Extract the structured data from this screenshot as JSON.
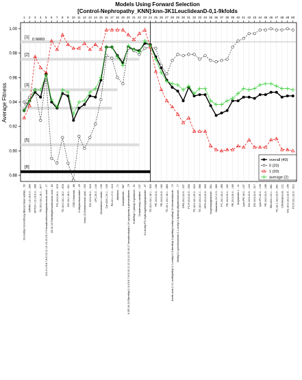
{
  "chart_data": {
    "type": "line",
    "title": "Models Using Forward Selection",
    "subtitle": "[Control-Nephropathy_KNN]:knn-3K1LeuclideanD-0,1-9kfolds",
    "ylabel": "Average Fitness",
    "xlabel": "",
    "ylim": [
      0.875,
      1.005
    ],
    "yticks": [
      "0.88",
      "0.90",
      "0.92",
      "0.94",
      "0.96",
      "0.98",
      "1.00"
    ],
    "y_tick_values": [
      0.88,
      0.9,
      0.92,
      0.94,
      0.96,
      0.98,
      1.0
    ],
    "top_ticks": [
      "2",
      "4",
      "6",
      "8",
      "10",
      "12",
      "14",
      "16",
      "18",
      "20",
      "22",
      "24",
      "26",
      "28",
      "30",
      "32",
      "34",
      "36",
      "38",
      "40",
      "42",
      "44",
      "46",
      "48",
      "50"
    ],
    "top_ticks_alt": [
      "1",
      "3",
      "5",
      "7",
      "9",
      "11",
      "13",
      "15",
      "17",
      "19",
      "21",
      "23",
      "25",
      "27",
      "29",
      "31",
      "33",
      "35",
      "37",
      "39",
      "41",
      "43",
      "45",
      "47",
      "49"
    ],
    "reference": {
      "label": "0.9893",
      "y": 0.9893
    },
    "level_labels": [
      {
        "label": "[1]",
        "y": 0.9893,
        "x_end": 24
      },
      {
        "label": "[2]",
        "y": 0.975,
        "x_end": 22
      },
      {
        "label": "[3]",
        "y": 0.95,
        "x_end": 18
      },
      {
        "label": "[4]",
        "y": 0.935,
        "x_end": 17
      },
      {
        "label": "[5]",
        "y": 0.905,
        "x_end": 22
      },
      {
        "label": "[6]",
        "y": 0.883,
        "x_end": 24
      }
    ],
    "cutoff_x": 24,
    "x": [
      1,
      2,
      3,
      4,
      5,
      6,
      7,
      8,
      9,
      10,
      11,
      12,
      13,
      14,
      15,
      16,
      17,
      18,
      19,
      20,
      21,
      22,
      23,
      24,
      25,
      26,
      27,
      28,
      29,
      30,
      31,
      32,
      33,
      34,
      35,
      36,
      37,
      38,
      39,
      40,
      41,
      42,
      43,
      44,
      45,
      46,
      47,
      48,
      49,
      50
    ],
    "series": [
      {
        "name": "overall (40)",
        "color": "#000000",
        "marker": "dot",
        "values": [
          0.933,
          0.941,
          0.948,
          0.944,
          0.963,
          0.94,
          0.935,
          0.947,
          0.945,
          0.925,
          0.935,
          0.938,
          0.945,
          0.944,
          0.958,
          0.985,
          0.985,
          0.978,
          0.972,
          0.985,
          0.983,
          0.982,
          0.988,
          0.987,
          0.977,
          0.968,
          0.958,
          0.952,
          0.949,
          0.941,
          0.952,
          0.945,
          0.946,
          0.946,
          0.937,
          0.929,
          0.931,
          0.933,
          0.941,
          0.941,
          0.944,
          0.944,
          0.943,
          0.946,
          0.946,
          0.948,
          0.948,
          0.944,
          0.945,
          0.945
        ]
      },
      {
        "name": "0 (20)",
        "color": "#333333",
        "marker": "circle",
        "values": [
          0.94,
          0.944,
          0.95,
          0.925,
          0.96,
          0.894,
          0.89,
          0.911,
          0.89,
          0.876,
          0.912,
          0.902,
          0.911,
          0.922,
          0.942,
          0.978,
          0.976,
          0.96,
          0.955,
          0.984,
          0.982,
          0.979,
          0.984,
          0.985,
          0.984,
          0.97,
          0.963,
          0.974,
          0.979,
          0.978,
          0.979,
          0.979,
          0.975,
          0.978,
          0.974,
          0.973,
          0.974,
          0.975,
          0.985,
          0.99,
          0.992,
          0.996,
          0.996,
          0.999,
          0.999,
          1.0,
          0.999,
          0.999,
          1.0,
          0.999
        ]
      },
      {
        "name": "1 (20)",
        "color": "#e60000",
        "marker": "triangle",
        "values": [
          0.927,
          0.937,
          0.977,
          0.968,
          0.964,
          0.99,
          0.983,
          0.995,
          0.987,
          0.984,
          0.984,
          0.988,
          0.983,
          0.987,
          0.983,
          0.999,
          0.999,
          0.999,
          0.999,
          0.995,
          0.991,
          0.996,
          0.999,
          0.985,
          0.965,
          0.95,
          0.941,
          0.936,
          0.93,
          0.923,
          0.927,
          0.916,
          0.916,
          0.916,
          0.904,
          0.901,
          0.9,
          0.901,
          0.901,
          0.904,
          0.903,
          0.909,
          0.903,
          0.903,
          0.903,
          0.909,
          0.91,
          0.901,
          0.901,
          0.9
        ]
      },
      {
        "name": "average (2)",
        "color": "#33cc33",
        "marker": "plus",
        "values": [
          0.933,
          0.941,
          0.95,
          0.95,
          0.962,
          0.942,
          0.936,
          0.95,
          0.948,
          0.93,
          0.94,
          0.941,
          0.948,
          0.951,
          0.96,
          0.985,
          0.985,
          0.977,
          0.97,
          0.986,
          0.983,
          0.981,
          0.99,
          0.986,
          0.975,
          0.964,
          0.957,
          0.955,
          0.954,
          0.95,
          0.953,
          0.947,
          0.951,
          0.951,
          0.941,
          0.938,
          0.938,
          0.941,
          0.943,
          0.947,
          0.951,
          0.95,
          0.951,
          0.954,
          0.955,
          0.955,
          0.953,
          0.951,
          0.951,
          0.95
        ]
      }
    ],
    "categories": [
      "X3.methyl.4.8.methoxy.dibenzofuran.sulfate .. 52",
      "GPRIN 1.D.16.0.3 .. 390",
      "GPTCH 1.D.19.0.3 .. 396",
      "TG.16.0.18.1.18.1 .. 877",
      "X12.3.4.5.6.7.8.9.10.11.12.13.15.16.17.Hexadecafluoroheptadecanoic.acid .. 17",
      "X9.10.16.Trimethylhexadecanoic.acid .. 62",
      "PG.18.0.20.4 .. 579",
      "TG.16.0.18.1.18.2 .. 878",
      "DG.18.1.18.2 .. 321",
      "CSE.Ceramide .. 86",
      "X.ethylacetoacetate .. 25",
      "trans.13.Octadecenoic.acid .. 153",
      "DG.16.0.20.4 .. 316",
      "LPC.20.0 .. 140",
      "Cholesterol.1.oleate .. 126",
      "Cer.d18.1.24.1 .. 109",
      "PA.22.1.17.0 .. 413",
      "Abietane .. 71",
      "Anandamide .. 367",
      "X.2R.16.19.Dimethyl.2.3.4.5.6.7.8.9.10.11.12.13.14.15.16.17.hexadecahydro.1H.cyclopenta.a.phenanthrene .. 79",
      "N.Methyl.7.phenyl.3.pentanol .. 51",
      "Octadecenyl.carnitine .. 137",
      "X4.Acetyl.PC.Hydroxyphenylpropionate .. 97",
      "TG.16.0.18.1.18.1 .. 920",
      "PE.16.0.22.6 .. 160",
      "PE.18.0.22.6 .. 162",
      "TG.16.1.18.1.18.1 .. 883",
      "Acetic.acid.2.4.1.methylethyl.2.1.methyl.2.3.dimethyl.2.pyridinyl.methyl.sulfinyl.1H.benzimidazole .. 72",
      "Methyl.2.cyclohexanone.2.1.acetyl.2.hydroxyl.dihydrochalcone .. 77",
      "GPA.20.2.22.6 .. 237",
      "PC.P.20.0.22.5 .. 530",
      "TG.16.0.18.1.20.2 .. 924",
      "TG.16.0.18.2.20.1 .. 966",
      "GPS.20.3.22.6 .. 393",
      "Isogeranylgeraniole .. 501",
      "Maraviroc.3.C.2.3 .. 363",
      "PC.18.1.20.4 .. 495",
      "PE.18.0.20.4 .. 162",
      "PE.20.3.20.4 .. 169",
      "Acrylamide.1 .. 41",
      "Lyso.PE.18.0 .. 107",
      "DG.16.0.22.6 .. 134",
      "DG.16.0.22.6 .. 317",
      "Lyso.PC.20.4 .. 140",
      "PE.18.2.22.6 .. 186",
      "SM.d18.1.24.1 .. 881",
      "TG.18.1.18.2.22.6 .. 991",
      "Chlorinated.oil .. 121",
      "DG.16.0.18.2.22.6 .. 155",
      "PC.P.18.1.22.6 .. 612"
    ]
  },
  "legend": {
    "position": "bottom-right",
    "entries": [
      "overall (40)",
      "0 (20)",
      "1 (20)",
      "average (2)"
    ]
  }
}
